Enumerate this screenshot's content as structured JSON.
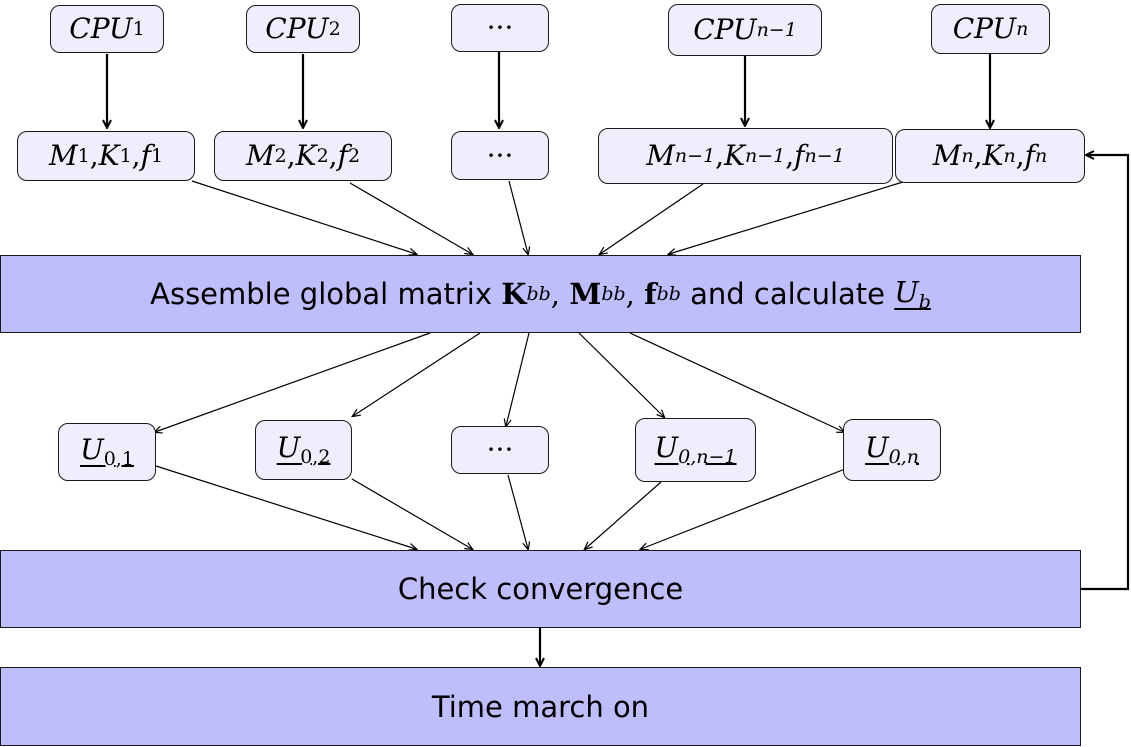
{
  "cpu_row": [
    {
      "base": "CPU",
      "sub": "1"
    },
    {
      "base": "CPU",
      "sub": "2"
    },
    {
      "base": "···",
      "sub": ""
    },
    {
      "base": "CPU",
      "sub": "n−1"
    },
    {
      "base": "CPU",
      "sub": "n"
    }
  ],
  "matrix_row": [
    {
      "m": "M",
      "k": "K",
      "f": "f",
      "sub": "1",
      "sep": ", ",
      "dots": ""
    },
    {
      "m": "M",
      "k": "K",
      "f": "f",
      "sub": "2",
      "sep": ", ",
      "dots": ""
    },
    {
      "m": "",
      "k": "",
      "f": "",
      "sub": "",
      "sep": "",
      "dots": "···"
    },
    {
      "m": "M",
      "k": "K",
      "f": "f",
      "sub": "n−1",
      "sep": ", ",
      "dots": ""
    },
    {
      "m": "M",
      "k": "K",
      "f": "f",
      "sub": "n",
      "sep": ", ",
      "dots": ""
    }
  ],
  "assemble_bar": {
    "prefix": "Assemble global matrix ",
    "K": "K",
    "M": "M",
    "f": "f",
    "sub": "bb",
    "comma": ", ",
    "middle": " and calculate ",
    "U": "U",
    "U_sub": "b"
  },
  "u_row": [
    {
      "base": "U",
      "sub": "0,1",
      "dots": ""
    },
    {
      "base": "U",
      "sub": "0,2",
      "dots": ""
    },
    {
      "base": "",
      "sub": "",
      "dots": "···"
    },
    {
      "base": "U",
      "sub": "0,n−1",
      "dots": ""
    },
    {
      "base": "U",
      "sub": "0,n",
      "dots": ""
    }
  ],
  "convergence_bar": {
    "label": "Check convergence"
  },
  "time_bar": {
    "label": "Time march on"
  },
  "colors": {
    "node_fill": "#eeeefc",
    "bar_fill": "#bebefc",
    "stroke": "#1a1a1a"
  }
}
